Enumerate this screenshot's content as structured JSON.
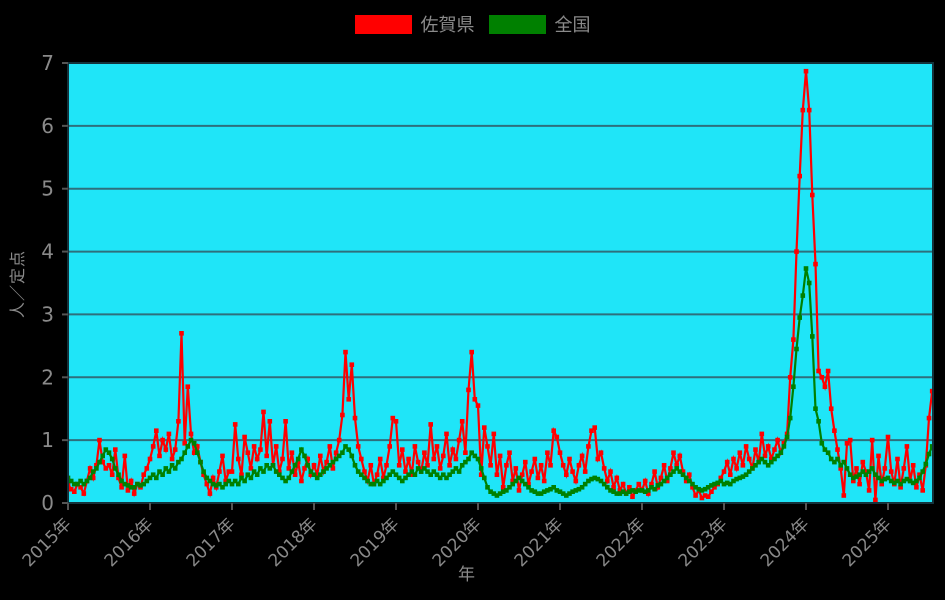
{
  "colors": {
    "background": "#000000",
    "plot_background": "#1FE5F8",
    "gridline": "#2E6F7C",
    "plot_border": "#14333C",
    "text": "#8a8a8a",
    "saga_red": "#FF0000",
    "national_green": "#008000"
  },
  "chart_data": {
    "type": "line",
    "title": "",
    "xlabel": "年",
    "ylabel": "人／定点",
    "ylim": [
      0,
      7
    ],
    "y_ticks": [
      0,
      1,
      2,
      3,
      4,
      5,
      6,
      7
    ],
    "x_tick_labels": [
      "2015年",
      "2016年",
      "2017年",
      "2018年",
      "2019年",
      "2020年",
      "2021年",
      "2022年",
      "2023年",
      "2024年",
      "2025年"
    ],
    "x_start_year": 2015,
    "points_per_year": 26,
    "grid": true,
    "legend_position": "top",
    "series": [
      {
        "name": "佐賀県",
        "color": "#FF0000",
        "values": [
          0.3,
          0.22,
          0.18,
          0.3,
          0.25,
          0.15,
          0.35,
          0.55,
          0.4,
          0.6,
          1.0,
          0.65,
          0.55,
          0.6,
          0.45,
          0.85,
          0.4,
          0.25,
          0.75,
          0.2,
          0.35,
          0.15,
          0.3,
          0.25,
          0.45,
          0.55,
          0.7,
          0.9,
          1.15,
          0.75,
          1.0,
          0.85,
          1.1,
          0.7,
          0.85,
          1.3,
          2.7,
          0.95,
          1.85,
          1.1,
          0.8,
          0.9,
          0.65,
          0.45,
          0.3,
          0.15,
          0.4,
          0.25,
          0.5,
          0.75,
          0.35,
          0.5,
          0.5,
          1.25,
          0.7,
          0.45,
          1.05,
          0.8,
          0.55,
          0.9,
          0.7,
          0.85,
          1.45,
          0.75,
          1.3,
          0.6,
          0.9,
          0.5,
          0.7,
          1.3,
          0.55,
          0.8,
          0.45,
          0.65,
          0.35,
          0.55,
          0.7,
          0.45,
          0.6,
          0.45,
          0.75,
          0.5,
          0.65,
          0.9,
          0.55,
          0.8,
          1.0,
          1.4,
          2.4,
          1.65,
          2.2,
          1.35,
          0.9,
          0.7,
          0.5,
          0.35,
          0.6,
          0.3,
          0.45,
          0.7,
          0.4,
          0.6,
          0.9,
          1.35,
          1.3,
          0.6,
          0.85,
          0.5,
          0.7,
          0.45,
          0.9,
          0.65,
          0.5,
          0.8,
          0.6,
          1.25,
          0.7,
          0.9,
          0.55,
          0.75,
          1.1,
          0.6,
          0.85,
          0.7,
          1.0,
          1.3,
          0.8,
          1.8,
          2.4,
          1.65,
          1.55,
          0.45,
          1.2,
          0.9,
          0.6,
          1.1,
          0.45,
          0.75,
          0.25,
          0.6,
          0.8,
          0.35,
          0.55,
          0.2,
          0.45,
          0.65,
          0.3,
          0.5,
          0.7,
          0.4,
          0.6,
          0.35,
          0.8,
          0.6,
          1.15,
          1.05,
          0.8,
          0.6,
          0.45,
          0.7,
          0.5,
          0.35,
          0.6,
          0.75,
          0.5,
          0.9,
          1.15,
          1.2,
          0.7,
          0.8,
          0.55,
          0.35,
          0.5,
          0.25,
          0.4,
          0.2,
          0.3,
          0.15,
          0.25,
          0.1,
          0.2,
          0.3,
          0.2,
          0.35,
          0.15,
          0.3,
          0.5,
          0.25,
          0.4,
          0.6,
          0.35,
          0.55,
          0.8,
          0.6,
          0.75,
          0.5,
          0.35,
          0.45,
          0.25,
          0.12,
          0.2,
          0.08,
          0.12,
          0.1,
          0.18,
          0.25,
          0.3,
          0.4,
          0.5,
          0.65,
          0.45,
          0.7,
          0.55,
          0.8,
          0.6,
          0.9,
          0.7,
          0.55,
          0.85,
          0.65,
          1.1,
          0.75,
          0.9,
          0.7,
          0.85,
          1.0,
          0.8,
          0.95,
          1.1,
          2.0,
          2.6,
          4.0,
          5.2,
          6.25,
          6.87,
          6.25,
          4.9,
          3.8,
          2.1,
          2.0,
          1.85,
          2.1,
          1.5,
          1.15,
          0.85,
          0.55,
          0.12,
          0.95,
          1.0,
          0.35,
          0.55,
          0.3,
          0.65,
          0.5,
          0.2,
          1.0,
          0.05,
          0.75,
          0.3,
          0.55,
          1.05,
          0.5,
          0.3,
          0.7,
          0.25,
          0.55,
          0.9,
          0.35,
          0.6,
          0.25,
          0.45,
          0.2,
          0.6,
          1.35,
          1.78
        ]
      },
      {
        "name": "全国",
        "color": "#008000",
        "values": [
          0.4,
          0.35,
          0.3,
          0.3,
          0.35,
          0.3,
          0.35,
          0.4,
          0.5,
          0.55,
          0.65,
          0.75,
          0.85,
          0.8,
          0.7,
          0.55,
          0.45,
          0.35,
          0.3,
          0.28,
          0.25,
          0.25,
          0.3,
          0.28,
          0.3,
          0.35,
          0.4,
          0.45,
          0.4,
          0.5,
          0.45,
          0.55,
          0.5,
          0.6,
          0.55,
          0.65,
          0.7,
          0.8,
          0.9,
          1.0,
          0.95,
          0.8,
          0.65,
          0.5,
          0.4,
          0.35,
          0.3,
          0.28,
          0.3,
          0.25,
          0.3,
          0.35,
          0.3,
          0.35,
          0.3,
          0.4,
          0.35,
          0.45,
          0.4,
          0.5,
          0.45,
          0.55,
          0.5,
          0.6,
          0.55,
          0.6,
          0.5,
          0.45,
          0.4,
          0.35,
          0.4,
          0.5,
          0.6,
          0.7,
          0.85,
          0.75,
          0.6,
          0.5,
          0.45,
          0.4,
          0.45,
          0.5,
          0.55,
          0.6,
          0.65,
          0.7,
          0.75,
          0.8,
          0.9,
          0.85,
          0.75,
          0.6,
          0.5,
          0.45,
          0.4,
          0.35,
          0.3,
          0.3,
          0.35,
          0.3,
          0.35,
          0.4,
          0.45,
          0.5,
          0.45,
          0.4,
          0.35,
          0.4,
          0.45,
          0.5,
          0.45,
          0.55,
          0.5,
          0.55,
          0.5,
          0.45,
          0.5,
          0.45,
          0.4,
          0.45,
          0.4,
          0.45,
          0.5,
          0.55,
          0.5,
          0.6,
          0.65,
          0.7,
          0.8,
          0.75,
          0.7,
          0.55,
          0.4,
          0.25,
          0.18,
          0.15,
          0.12,
          0.15,
          0.18,
          0.2,
          0.25,
          0.3,
          0.35,
          0.4,
          0.35,
          0.3,
          0.25,
          0.2,
          0.18,
          0.15,
          0.15,
          0.18,
          0.2,
          0.22,
          0.25,
          0.2,
          0.18,
          0.15,
          0.12,
          0.15,
          0.18,
          0.2,
          0.22,
          0.25,
          0.3,
          0.35,
          0.38,
          0.4,
          0.38,
          0.35,
          0.3,
          0.25,
          0.2,
          0.18,
          0.15,
          0.15,
          0.18,
          0.15,
          0.18,
          0.2,
          0.18,
          0.2,
          0.2,
          0.18,
          0.2,
          0.25,
          0.22,
          0.28,
          0.3,
          0.35,
          0.4,
          0.45,
          0.5,
          0.55,
          0.5,
          0.45,
          0.4,
          0.35,
          0.3,
          0.25,
          0.22,
          0.2,
          0.22,
          0.25,
          0.28,
          0.3,
          0.32,
          0.35,
          0.3,
          0.32,
          0.3,
          0.35,
          0.38,
          0.4,
          0.42,
          0.45,
          0.5,
          0.55,
          0.6,
          0.65,
          0.7,
          0.65,
          0.6,
          0.65,
          0.7,
          0.75,
          0.8,
          0.9,
          1.05,
          1.35,
          1.85,
          2.45,
          2.95,
          3.3,
          3.73,
          3.5,
          2.65,
          1.5,
          1.3,
          0.95,
          0.85,
          0.8,
          0.7,
          0.65,
          0.7,
          0.6,
          0.65,
          0.55,
          0.45,
          0.4,
          0.42,
          0.45,
          0.5,
          0.45,
          0.5,
          0.55,
          0.45,
          0.4,
          0.35,
          0.38,
          0.4,
          0.35,
          0.32,
          0.35,
          0.3,
          0.35,
          0.38,
          0.35,
          0.32,
          0.35,
          0.4,
          0.5,
          0.62,
          0.78,
          0.9
        ]
      }
    ]
  }
}
